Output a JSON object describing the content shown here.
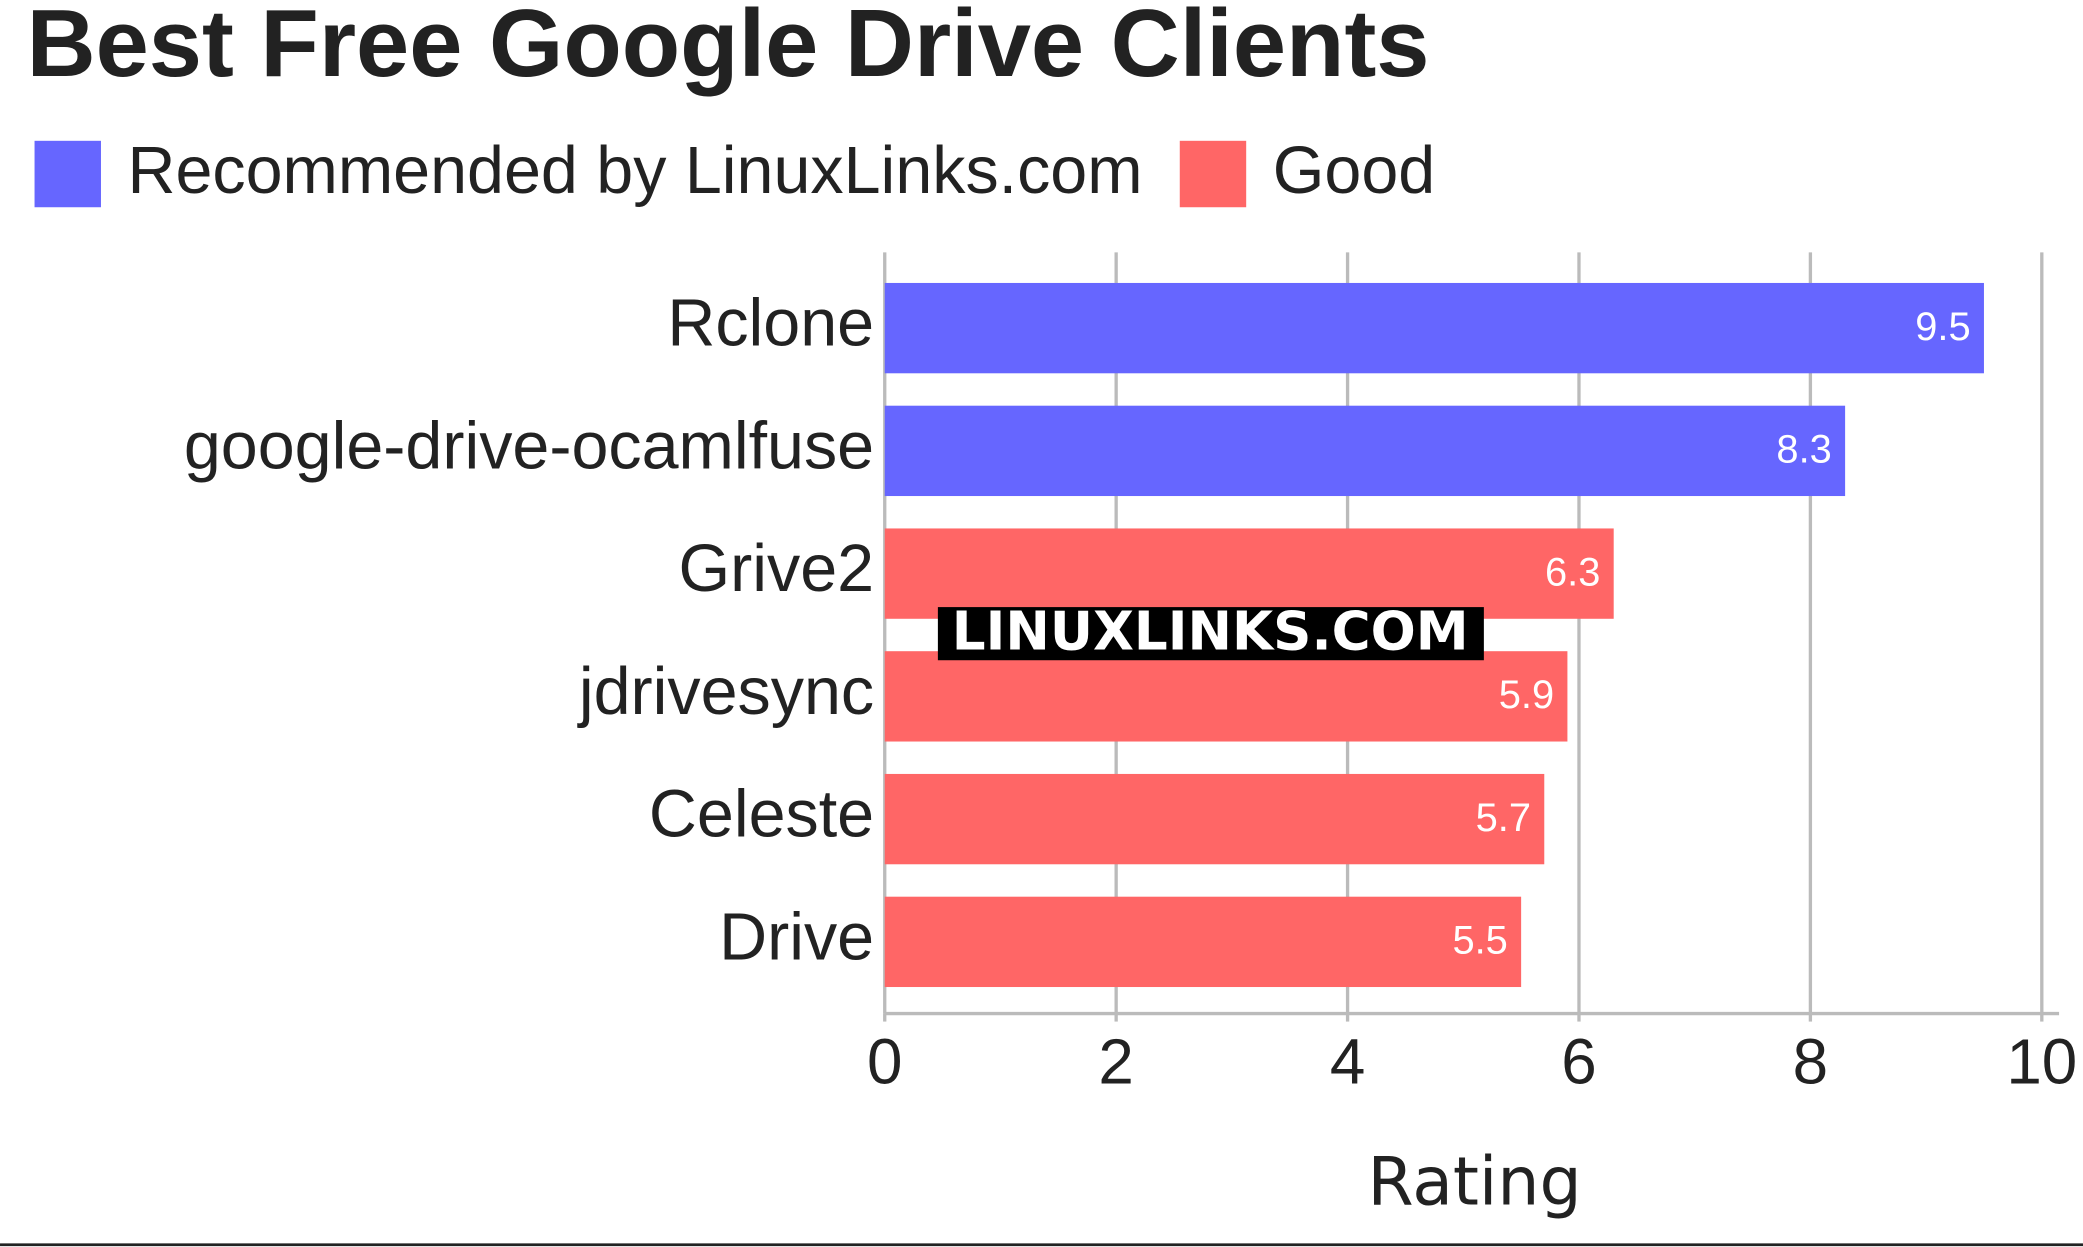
{
  "chart_data": {
    "type": "bar",
    "orientation": "horizontal",
    "title": "Best Free Google Drive Clients",
    "categories": [
      "Rclone",
      "google-drive-ocamlfuse",
      "Grive2",
      "jdrivesync",
      "Celeste",
      "Drive"
    ],
    "series": [
      {
        "name": "Recommended by LinuxLinks.com",
        "color": "#6666ff",
        "values": [
          9.5,
          8.3,
          null,
          null,
          null,
          null
        ]
      },
      {
        "name": "Good",
        "color": "#ff6666",
        "values": [
          null,
          null,
          6.3,
          5.9,
          5.7,
          5.5
        ]
      }
    ],
    "xlabel": "Rating",
    "xlim": [
      0,
      10
    ],
    "xticks": [
      0,
      2,
      4,
      6,
      8,
      10
    ],
    "grid": true,
    "legend": "top-left",
    "watermark": "LINUXLINKS.COM"
  }
}
